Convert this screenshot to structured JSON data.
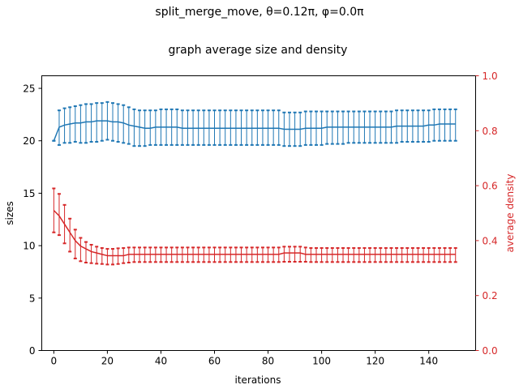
{
  "chart_data": {
    "type": "line",
    "title": "split_merge_move, θ=0.12π, φ=0.0π",
    "subtitle": "graph average size and density",
    "xlabel": "iterations",
    "ylabel": "sizes",
    "y2label": "average density",
    "xlim": [
      -4.5,
      157.5
    ],
    "ylim": [
      0,
      26.2
    ],
    "y2lim": [
      0.0,
      1.0
    ],
    "x_ticks": [
      0,
      20,
      40,
      60,
      80,
      100,
      120,
      140
    ],
    "y_ticks": [
      0,
      5,
      10,
      15,
      20,
      25
    ],
    "y2_ticks": [
      0.0,
      0.2,
      0.4,
      0.6,
      0.8,
      1.0
    ],
    "grid": false,
    "legend": "none",
    "series": [
      {
        "axis": "left",
        "color": "#1f77b4",
        "x_start": 0,
        "x_step": 2,
        "mean": [
          20.0,
          21.3,
          21.5,
          21.6,
          21.7,
          21.7,
          21.8,
          21.8,
          21.9,
          21.9,
          21.9,
          21.8,
          21.8,
          21.7,
          21.5,
          21.4,
          21.3,
          21.2,
          21.2,
          21.3,
          21.3,
          21.3,
          21.3,
          21.3,
          21.2,
          21.2,
          21.2,
          21.2,
          21.2,
          21.2,
          21.2,
          21.2,
          21.2,
          21.2,
          21.2,
          21.2,
          21.2,
          21.2,
          21.2,
          21.2,
          21.2,
          21.2,
          21.2,
          21.1,
          21.1,
          21.1,
          21.1,
          21.2,
          21.2,
          21.2,
          21.2,
          21.3,
          21.3,
          21.3,
          21.3,
          21.3,
          21.3,
          21.3,
          21.3,
          21.3,
          21.3,
          21.3,
          21.3,
          21.3,
          21.4,
          21.4,
          21.4,
          21.4,
          21.4,
          21.4,
          21.5,
          21.5,
          21.6,
          21.6,
          21.6,
          21.6
        ],
        "upper": [
          20.0,
          22.9,
          23.1,
          23.2,
          23.3,
          23.4,
          23.5,
          23.5,
          23.6,
          23.6,
          23.7,
          23.6,
          23.5,
          23.4,
          23.2,
          23.0,
          22.9,
          22.9,
          22.9,
          22.9,
          23.0,
          23.0,
          23.0,
          23.0,
          22.9,
          22.9,
          22.9,
          22.9,
          22.9,
          22.9,
          22.9,
          22.9,
          22.9,
          22.9,
          22.9,
          22.9,
          22.9,
          22.9,
          22.9,
          22.9,
          22.9,
          22.9,
          22.9,
          22.7,
          22.7,
          22.7,
          22.7,
          22.8,
          22.8,
          22.8,
          22.8,
          22.8,
          22.8,
          22.8,
          22.8,
          22.8,
          22.8,
          22.8,
          22.8,
          22.8,
          22.8,
          22.8,
          22.8,
          22.8,
          22.9,
          22.9,
          22.9,
          22.9,
          22.9,
          22.9,
          22.9,
          23.0,
          23.0,
          23.0,
          23.0,
          23.0
        ],
        "lower": [
          20.0,
          19.6,
          19.8,
          19.8,
          19.9,
          19.8,
          19.8,
          19.9,
          19.9,
          20.0,
          20.1,
          20.0,
          19.9,
          19.8,
          19.7,
          19.5,
          19.5,
          19.5,
          19.6,
          19.6,
          19.6,
          19.6,
          19.6,
          19.6,
          19.6,
          19.6,
          19.6,
          19.6,
          19.6,
          19.6,
          19.6,
          19.6,
          19.6,
          19.6,
          19.6,
          19.6,
          19.6,
          19.6,
          19.6,
          19.6,
          19.6,
          19.6,
          19.6,
          19.5,
          19.5,
          19.5,
          19.5,
          19.6,
          19.6,
          19.6,
          19.6,
          19.7,
          19.7,
          19.7,
          19.7,
          19.8,
          19.8,
          19.8,
          19.8,
          19.8,
          19.8,
          19.8,
          19.8,
          19.8,
          19.8,
          19.9,
          19.9,
          19.9,
          19.9,
          19.9,
          19.9,
          20.0,
          20.0,
          20.0,
          20.0,
          20.0
        ]
      },
      {
        "axis": "right",
        "color": "#d62728",
        "x_start": 0,
        "x_step": 2,
        "mean": [
          0.51,
          0.49,
          0.46,
          0.43,
          0.4,
          0.38,
          0.37,
          0.36,
          0.355,
          0.35,
          0.345,
          0.345,
          0.345,
          0.345,
          0.35,
          0.35,
          0.35,
          0.35,
          0.35,
          0.35,
          0.35,
          0.35,
          0.35,
          0.35,
          0.35,
          0.35,
          0.35,
          0.35,
          0.35,
          0.35,
          0.35,
          0.35,
          0.35,
          0.35,
          0.35,
          0.35,
          0.35,
          0.35,
          0.35,
          0.35,
          0.35,
          0.35,
          0.35,
          0.355,
          0.355,
          0.355,
          0.355,
          0.35,
          0.35,
          0.35,
          0.35,
          0.35,
          0.35,
          0.35,
          0.35,
          0.35,
          0.35,
          0.35,
          0.35,
          0.35,
          0.35,
          0.35,
          0.35,
          0.35,
          0.35,
          0.35,
          0.35,
          0.35,
          0.35,
          0.35,
          0.35,
          0.35,
          0.35,
          0.35,
          0.35,
          0.35
        ],
        "upper": [
          0.59,
          0.57,
          0.53,
          0.48,
          0.44,
          0.41,
          0.395,
          0.385,
          0.378,
          0.373,
          0.37,
          0.37,
          0.372,
          0.373,
          0.375,
          0.375,
          0.375,
          0.375,
          0.375,
          0.375,
          0.375,
          0.375,
          0.375,
          0.375,
          0.375,
          0.375,
          0.375,
          0.375,
          0.375,
          0.375,
          0.375,
          0.375,
          0.375,
          0.375,
          0.375,
          0.375,
          0.375,
          0.375,
          0.375,
          0.375,
          0.375,
          0.375,
          0.375,
          0.378,
          0.378,
          0.378,
          0.378,
          0.375,
          0.373,
          0.373,
          0.373,
          0.373,
          0.373,
          0.373,
          0.373,
          0.373,
          0.373,
          0.373,
          0.373,
          0.373,
          0.373,
          0.373,
          0.373,
          0.373,
          0.373,
          0.373,
          0.373,
          0.373,
          0.373,
          0.373,
          0.373,
          0.373,
          0.373,
          0.373,
          0.373,
          0.373
        ],
        "lower": [
          0.43,
          0.42,
          0.39,
          0.36,
          0.335,
          0.325,
          0.32,
          0.318,
          0.316,
          0.315,
          0.313,
          0.313,
          0.315,
          0.318,
          0.32,
          0.322,
          0.322,
          0.322,
          0.322,
          0.322,
          0.322,
          0.322,
          0.322,
          0.322,
          0.322,
          0.322,
          0.322,
          0.322,
          0.322,
          0.322,
          0.322,
          0.322,
          0.322,
          0.322,
          0.322,
          0.322,
          0.322,
          0.322,
          0.322,
          0.322,
          0.322,
          0.322,
          0.322,
          0.323,
          0.323,
          0.323,
          0.323,
          0.323,
          0.322,
          0.322,
          0.322,
          0.322,
          0.322,
          0.322,
          0.322,
          0.322,
          0.322,
          0.322,
          0.322,
          0.322,
          0.322,
          0.322,
          0.322,
          0.322,
          0.322,
          0.322,
          0.322,
          0.322,
          0.322,
          0.322,
          0.322,
          0.322,
          0.322,
          0.322,
          0.322,
          0.322
        ]
      }
    ]
  }
}
